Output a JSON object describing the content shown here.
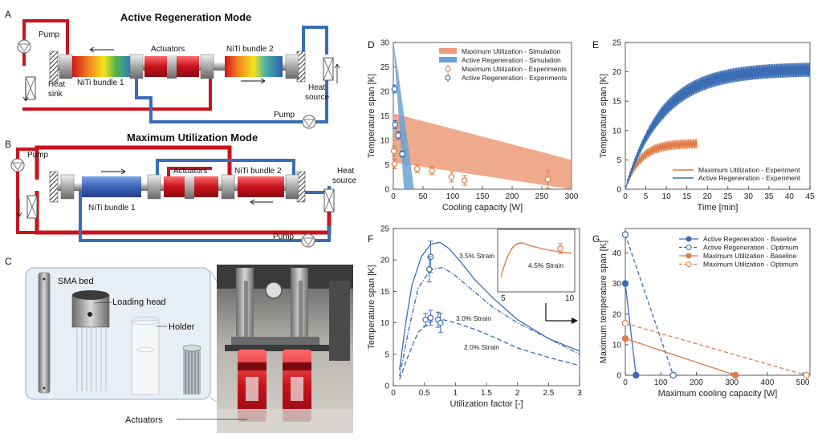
{
  "colors": {
    "red": "#c9131d",
    "blue": "#3b6db4",
    "orange": "#e07b45",
    "salmon": "#ec9a77",
    "lightblue": "#6aa3d3",
    "grey": "#9a9a9a"
  },
  "panel_a": {
    "letter": "A",
    "title": "Active Regeneration Mode",
    "pump_left": "Pump",
    "heat_sink_1": "Heat",
    "heat_sink_2": "sink",
    "actuators": "Actuators",
    "bundle1": "NiTi bundle 1",
    "bundle2": "NiTi bundle 2",
    "heat_source_1": "Heat",
    "heat_source_2": "source",
    "pump_bottom": "Pump"
  },
  "panel_b": {
    "letter": "B",
    "title": "Maximum Utilization Mode",
    "pump_left": "Pump",
    "actuators": "Actuators",
    "bundle1": "NiTi bundle 1",
    "bundle2": "NiTi bundle 2",
    "heat_source_1": "Heat",
    "heat_source_2": "source",
    "pump_bottom": "Pump"
  },
  "panel_c": {
    "letter": "C",
    "sma_bed": "SMA bed",
    "loading_head": "Loading head",
    "holder": "Holder",
    "actuators": "Actuators"
  },
  "chart_data": [
    {
      "panel": "D",
      "type": "scatter",
      "xlabel": "Cooling capacity [W]",
      "ylabel": "Temperature span [K]",
      "xlim": [
        0,
        300
      ],
      "ylim": [
        0,
        30
      ],
      "xticks": [
        0,
        50,
        100,
        150,
        200,
        250,
        300
      ],
      "yticks": [
        0,
        5,
        10,
        15,
        20,
        25,
        30
      ],
      "legend": [
        "Maximum Utilization - Simulation",
        "Active Regeneration - Simulation",
        "Maximum Utilization - Experiments",
        "Active Regeneration - Experiments"
      ],
      "max_util_sim_band": [
        [
          0,
          15.5
        ],
        [
          300,
          6
        ],
        [
          300,
          -2
        ],
        [
          0,
          5.5
        ]
      ],
      "active_regen_sim_band": [
        [
          0,
          30
        ],
        [
          8,
          24
        ],
        [
          35,
          0
        ],
        [
          18,
          0
        ]
      ],
      "series": [
        {
          "name": "Maximum Utilization - Experiments",
          "x": [
            1,
            2,
            40,
            65,
            98,
            120,
            260
          ],
          "y": [
            7.8,
            5.2,
            4.2,
            3.8,
            2.5,
            1.8,
            2
          ],
          "err": [
            1,
            1,
            0.8,
            0.8,
            1,
            1,
            1.8
          ]
        },
        {
          "name": "Active Regeneration - Experiments",
          "x": [
            2,
            3,
            8,
            15
          ],
          "y": [
            20.5,
            13.2,
            11,
            7.2
          ],
          "err": [
            0.8,
            0.8,
            0.8,
            0.6
          ]
        }
      ]
    },
    {
      "panel": "E",
      "type": "line",
      "xlabel": "Time [min]",
      "ylabel": "Temperature span [K]",
      "xlim": [
        0,
        45
      ],
      "ylim": [
        0,
        25
      ],
      "xticks": [
        0,
        5,
        10,
        15,
        20,
        25,
        30,
        35,
        40,
        45
      ],
      "yticks": [
        0,
        5,
        10,
        15,
        20,
        25
      ],
      "series": [
        {
          "name": "Maximum Utilization - Experiment",
          "t_end": 17.5,
          "plateau": 7.8,
          "tau": 3.5,
          "ripple": 0.8
        },
        {
          "name": "Active Regeneration - Experiment",
          "t_end": 45,
          "plateau": 20.5,
          "tau": 9,
          "ripple": 1.2
        }
      ]
    },
    {
      "panel": "F",
      "type": "line",
      "xlabel": "Utilization factor [-]",
      "ylabel": "Temperature span [K]",
      "xlim": [
        0,
        3
      ],
      "ylim": [
        0,
        25
      ],
      "xticks": [
        0,
        0.5,
        1,
        1.5,
        2,
        2.5,
        3
      ],
      "yticks": [
        0,
        5,
        10,
        15,
        20,
        25
      ],
      "annotations": [
        "3.5% Strain",
        "3.0% Strain",
        "2.0% Strain",
        "4.5% Strain"
      ],
      "curves": [
        {
          "name": "3.5% Strain",
          "style": "solid",
          "x": [
            0.1,
            0.2,
            0.3,
            0.45,
            0.6,
            0.75,
            0.9,
            1.1,
            1.3,
            1.6,
            2.0,
            2.5,
            3.0
          ],
          "y": [
            2.5,
            10,
            16,
            20.5,
            22.5,
            22.8,
            21.8,
            19.5,
            17,
            14,
            10.5,
            7.5,
            5.5
          ]
        },
        {
          "name": "3.0% Strain",
          "style": "dashdot",
          "x": [
            0.1,
            0.25,
            0.4,
            0.6,
            0.8,
            1.0,
            1.3,
            1.6,
            2.0,
            2.5,
            3.0
          ],
          "y": [
            1.5,
            9,
            15.5,
            18.5,
            18.8,
            17.5,
            15,
            12.5,
            10,
            7.5,
            5
          ]
        },
        {
          "name": "2.0% Strain",
          "style": "dashed",
          "x": [
            0.1,
            0.25,
            0.4,
            0.6,
            0.8,
            1.0,
            1.3,
            1.6,
            2.0,
            2.5,
            3.0
          ],
          "y": [
            1,
            5,
            8.5,
            10.2,
            10.5,
            10,
            9,
            7.8,
            6,
            4.5,
            3.2
          ]
        }
      ],
      "points": [
        {
          "x": 0.6,
          "y": 20.5,
          "err": 2.5
        },
        {
          "x": 0.58,
          "y": 18.5,
          "err": 2
        },
        {
          "x": 0.52,
          "y": 10.5,
          "err": 1
        },
        {
          "x": 0.6,
          "y": 10.8,
          "err": 1.2
        },
        {
          "x": 0.72,
          "y": 10.5,
          "err": 1.2
        },
        {
          "x": 0.76,
          "y": 10,
          "err": 1.5
        }
      ],
      "inset": {
        "xticks": [
          5,
          10
        ],
        "label": "4.5% Strain"
      }
    },
    {
      "panel": "G",
      "type": "line",
      "xlabel": "Maximum cooling capacity [W]",
      "ylabel": "Maximum temperature span [K]",
      "xlim": [
        0,
        520
      ],
      "ylim": [
        0,
        48
      ],
      "xticks": [
        0,
        100,
        200,
        300,
        400,
        500
      ],
      "yticks": [
        0,
        10,
        20,
        30,
        40
      ],
      "series": [
        {
          "name": "Active Regeneration - Baseline",
          "style": "solid",
          "fill": true,
          "color": "blue",
          "x": [
            0,
            30
          ],
          "y": [
            30,
            0
          ]
        },
        {
          "name": "Active Regeneration - Optimum",
          "style": "dashed",
          "fill": false,
          "color": "blue",
          "x": [
            0,
            135
          ],
          "y": [
            46,
            0
          ]
        },
        {
          "name": "Maximum Utilization - Baseline",
          "style": "solid",
          "fill": true,
          "color": "orange",
          "x": [
            0,
            310
          ],
          "y": [
            12,
            0
          ]
        },
        {
          "name": "Maximum Utilization - Optimum",
          "style": "dashed",
          "fill": false,
          "color": "orange",
          "x": [
            0,
            510
          ],
          "y": [
            17,
            0
          ]
        }
      ]
    }
  ]
}
